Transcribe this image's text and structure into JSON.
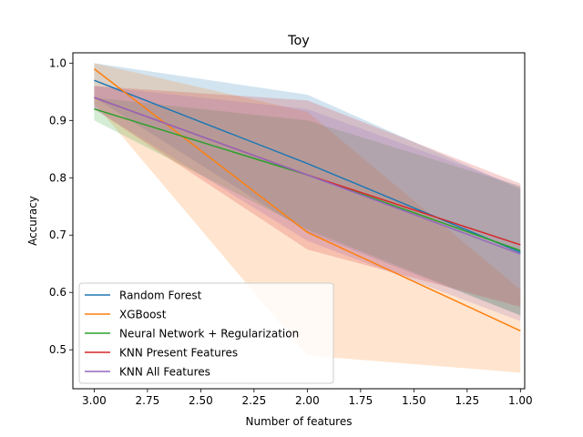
{
  "chart_data": {
    "type": "line",
    "title": "Toy",
    "xlabel": "Number of features",
    "ylabel": "Accuracy",
    "x": [
      3,
      2,
      1
    ],
    "xlim": [
      3.1,
      0.98
    ],
    "ylim": [
      0.432,
      1.018
    ],
    "x_axis_inverted": true,
    "xticks": [
      3.0,
      2.75,
      2.5,
      2.25,
      2.0,
      1.75,
      1.5,
      1.25,
      1.0
    ],
    "xtick_labels": [
      "3.00",
      "2.75",
      "2.50",
      "2.25",
      "2.00",
      "1.75",
      "1.50",
      "1.25",
      "1.00"
    ],
    "yticks": [
      0.5,
      0.6,
      0.7,
      0.8,
      0.9,
      1.0
    ],
    "ytick_labels": [
      "0.5",
      "0.6",
      "0.7",
      "0.8",
      "0.9",
      "1.0"
    ],
    "grid": false,
    "legend_position": "lower-left",
    "series": [
      {
        "name": "Random Forest",
        "color": "#1f77b4",
        "values": [
          0.97,
          0.825,
          0.67
        ],
        "band_lower": [
          0.94,
          0.705,
          0.56
        ],
        "band_upper": [
          1.0,
          0.945,
          0.78
        ]
      },
      {
        "name": "XGBoost",
        "color": "#ff7f0e",
        "values": [
          0.99,
          0.705,
          0.533
        ],
        "band_lower": [
          0.93,
          0.49,
          0.46
        ],
        "band_upper": [
          1.0,
          0.915,
          0.605
        ]
      },
      {
        "name": "Neural Network + Regularization",
        "color": "#2ca02c",
        "values": [
          0.92,
          0.805,
          0.673
        ],
        "band_lower": [
          0.9,
          0.71,
          0.56
        ],
        "band_upper": [
          0.94,
          0.9,
          0.785
        ]
      },
      {
        "name": "KNN Present Features",
        "color": "#d62728",
        "values": [
          0.94,
          0.805,
          0.683
        ],
        "band_lower": [
          0.92,
          0.675,
          0.575
        ],
        "band_upper": [
          0.96,
          0.935,
          0.79
        ]
      },
      {
        "name": "KNN All Features",
        "color": "#9467bd",
        "values": [
          0.94,
          0.805,
          0.667
        ],
        "band_lower": [
          0.92,
          0.69,
          0.55
        ],
        "band_upper": [
          0.96,
          0.92,
          0.785
        ]
      }
    ]
  }
}
